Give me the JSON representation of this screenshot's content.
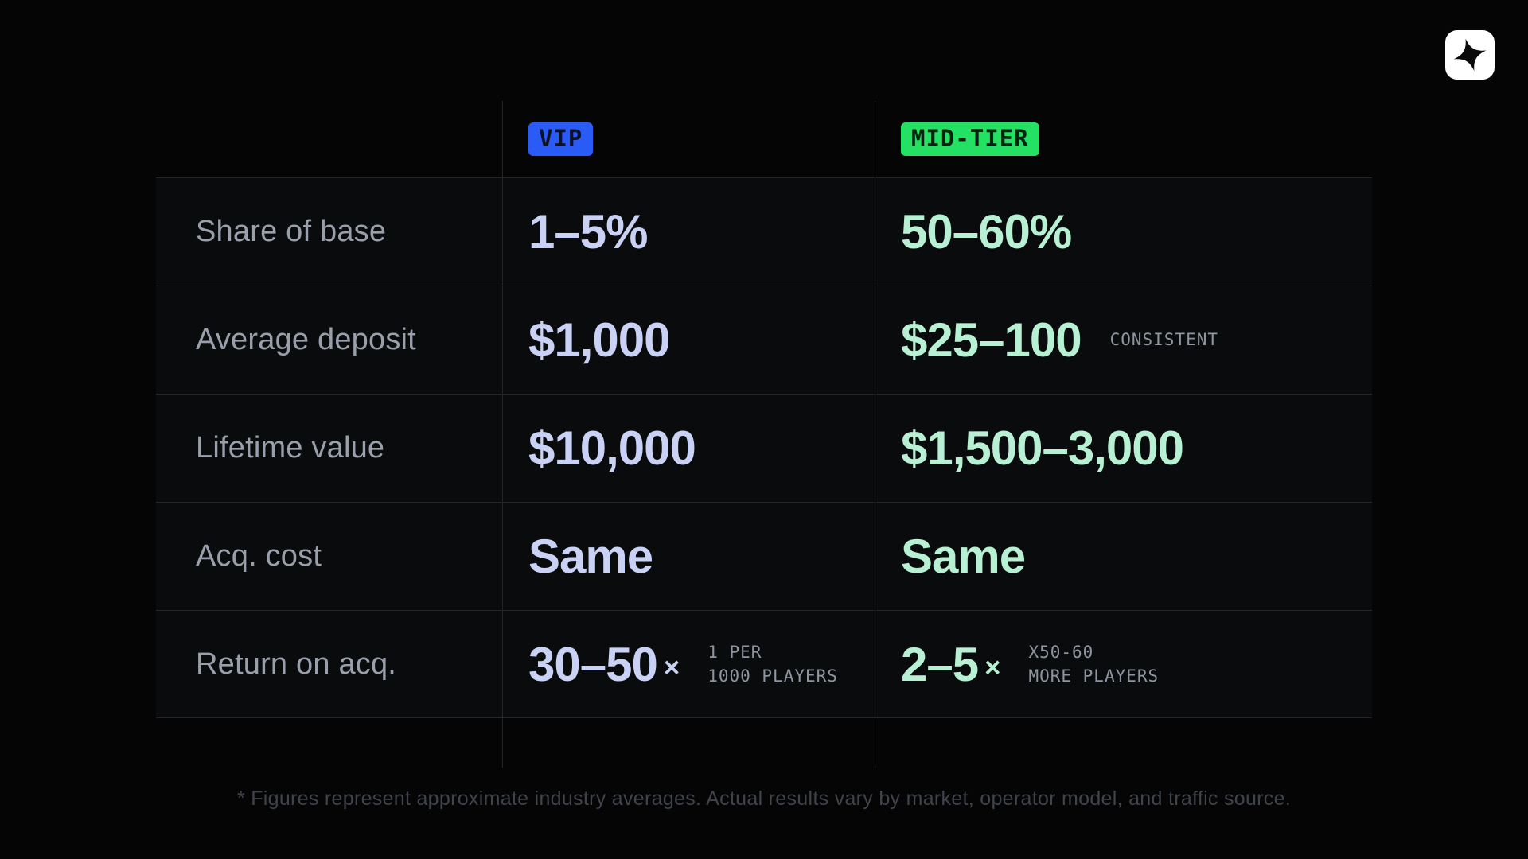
{
  "page": {
    "footnote": "* Figures represent approximate industry averages. Actual results vary by market, operator model, and traffic source."
  },
  "logo": {
    "icon": "four-point-star"
  },
  "table": {
    "columns": [
      {
        "key": "vip",
        "badge": "VIP",
        "badge_bg": "#2B5BF7",
        "badge_text": "#0B1126",
        "value_color": "#C9D2F5"
      },
      {
        "key": "mid",
        "badge": "MID-TIER",
        "badge_bg": "#25E163",
        "badge_text": "#04230F",
        "value_color": "#B7F0D3"
      }
    ],
    "rows": [
      {
        "label": "Share of base",
        "vip": {
          "value": "1–5%"
        },
        "mid": {
          "value": "50–60%"
        }
      },
      {
        "label": "Average deposit",
        "vip": {
          "value": "$1,000"
        },
        "mid": {
          "value": "$25–100",
          "note": "CONSISTENT"
        }
      },
      {
        "label": "Lifetime value",
        "vip": {
          "value": "$10,000"
        },
        "mid": {
          "value": "$1,500–3,000"
        }
      },
      {
        "label": "Acq. cost",
        "vip": {
          "value": "Same"
        },
        "mid": {
          "value": "Same"
        }
      },
      {
        "label": "Return on acq.",
        "vip": {
          "value": "30–50",
          "suffix": "×",
          "note": "1 PER\n1000 PLAYERS"
        },
        "mid": {
          "value": "2–5",
          "suffix": "×",
          "note": "X50-60\nMORE PLAYERS"
        }
      }
    ]
  },
  "chart_data": {
    "type": "table",
    "columns": [
      "",
      "VIP",
      "MID-TIER"
    ],
    "row_labels": [
      "Share of base",
      "Average deposit",
      "Lifetime value",
      "Acq. cost",
      "Return on acq."
    ],
    "series": [
      {
        "name": "VIP",
        "values": [
          "1–5%",
          "$1,000",
          "$10,000",
          "Same",
          "30–50×"
        ],
        "notes": [
          "",
          "",
          "",
          "",
          "1 PER 1000 PLAYERS"
        ]
      },
      {
        "name": "MID-TIER",
        "values": [
          "50–60%",
          "$25–100",
          "$1,500–3,000",
          "Same",
          "2–5×"
        ],
        "notes": [
          "",
          "CONSISTENT",
          "",
          "",
          "X50-60 MORE PLAYERS"
        ]
      }
    ],
    "accent_colors": {
      "vip": "#2B5BF7",
      "mid_tier": "#25E163"
    },
    "footnote": "* Figures represent approximate industry averages. Actual results vary by market, operator model, and traffic source."
  }
}
